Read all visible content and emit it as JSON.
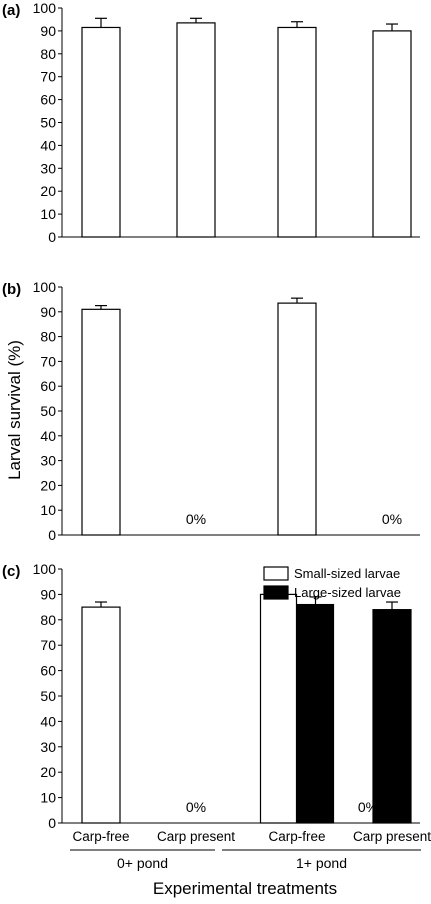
{
  "chart_data": [
    {
      "type": "bar",
      "panel_label": "(a)",
      "ylim": [
        0,
        100
      ],
      "yticks": [
        0,
        10,
        20,
        30,
        40,
        50,
        60,
        70,
        80,
        90,
        100
      ],
      "series": [
        {
          "name": "",
          "color": "#ffffff",
          "values": [
            91.5,
            93.5,
            91.5,
            90.0
          ],
          "errors": [
            4.0,
            2.0,
            2.5,
            3.0
          ]
        }
      ]
    },
    {
      "type": "bar",
      "panel_label": "(b)",
      "ylim": [
        0,
        100
      ],
      "yticks": [
        0,
        10,
        20,
        30,
        40,
        50,
        60,
        70,
        80,
        90,
        100
      ],
      "series": [
        {
          "name": "",
          "color": "#ffffff",
          "values": [
            91.0,
            0,
            93.5,
            0
          ],
          "errors": [
            1.5,
            0,
            2.0,
            0
          ]
        }
      ],
      "annotations": [
        {
          "category_index": 1,
          "text": "0%"
        },
        {
          "category_index": 3,
          "text": "0%"
        }
      ]
    },
    {
      "type": "bar",
      "panel_label": "(c)",
      "ylim": [
        0,
        100
      ],
      "yticks": [
        0,
        10,
        20,
        30,
        40,
        50,
        60,
        70,
        80,
        90,
        100
      ],
      "categories": [
        "Carp-free",
        "Carp present",
        "Carp-free",
        "Carp present"
      ],
      "groups": [
        {
          "label": "0+ pond",
          "categories": [
            0,
            1
          ]
        },
        {
          "label": "1+ pond",
          "categories": [
            2,
            3
          ]
        }
      ],
      "series": [
        {
          "name": "Small-sized larvae",
          "color": "#ffffff",
          "values": [
            85.0,
            0,
            90.0,
            null
          ],
          "errors": [
            2.0,
            0,
            1.5,
            null
          ]
        },
        {
          "name": "Large-sized larvae",
          "color": "#000000",
          "values": [
            null,
            null,
            86.0,
            84.0
          ],
          "errors": [
            null,
            null,
            3.0,
            3.0
          ]
        }
      ],
      "annotations": [
        {
          "category_index": 1,
          "text": "0%"
        },
        {
          "category_index": 3,
          "text": "0%",
          "offset": "left"
        }
      ],
      "legend": {
        "position": "top-right"
      }
    }
  ],
  "shared": {
    "ylabel": "Larval survival (%)",
    "xlabel": "Experimental treatments"
  }
}
